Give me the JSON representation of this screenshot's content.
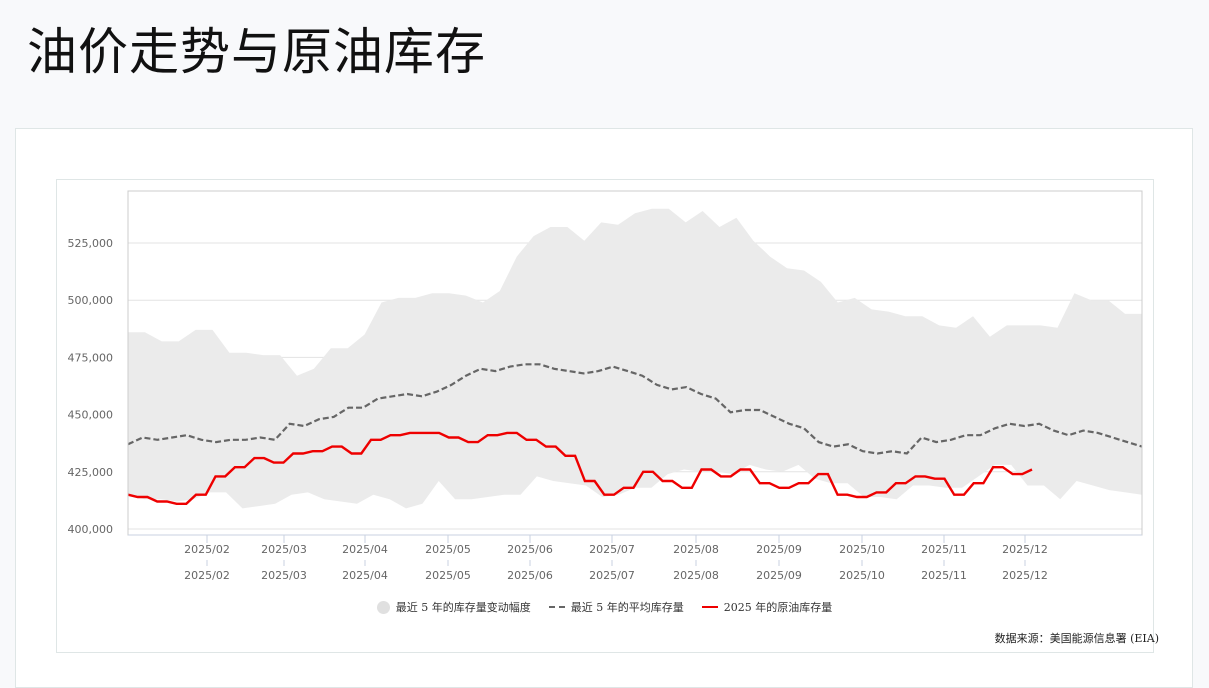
{
  "page": {
    "title": "油价走势与原油库存"
  },
  "chart": {
    "source_label": "数据来源：美国能源信息署 (EIA)",
    "legend": [
      {
        "key": "range",
        "label": "最近 5 年的库存量变动幅度",
        "icon": "circle-swatch-icon",
        "color": "#e0e0e0"
      },
      {
        "key": "avg",
        "label": "最近 5 年的平均库存量",
        "icon": "dashed-line-icon",
        "color": "#666666"
      },
      {
        "key": "current",
        "label": "2025 年的原油库存量",
        "icon": "solid-line-icon",
        "color": "#ee0000"
      }
    ],
    "colors": {
      "band": "#ebebeb",
      "avg": "#666666",
      "current": "#ee0000",
      "grid": "#e3e3e3",
      "axis": "#c8d2e0",
      "plot_border": "#cccccc"
    }
  },
  "chart_data": {
    "type": "area",
    "title": "油价走势与原油库存",
    "xlabel": "",
    "ylabel": "",
    "ylim": [
      397000,
      548000
    ],
    "yticks": [
      400000,
      425000,
      450000,
      475000,
      500000,
      525000
    ],
    "ytick_labels": [
      "400,000",
      "425,000",
      "450,000",
      "475,000",
      "500,000",
      "525,000"
    ],
    "x_tick_labels_row1": [
      "2025/02",
      "2025/03",
      "2025/04",
      "2025/05",
      "2025/06",
      "2025/07",
      "2025/08",
      "2025/09",
      "2025/10",
      "2025/11",
      "2025/12"
    ],
    "x_tick_labels_row2": [
      "2025/02",
      "2025/03",
      "2025/04",
      "2025/05",
      "2025/06",
      "2025/07",
      "2025/08",
      "2025/09",
      "2025/10",
      "2025/11",
      "2025/12"
    ],
    "x_tick_week_index": [
      4.1,
      8.0,
      12.2,
      16.5,
      20.7,
      24.9,
      29.2,
      33.5,
      37.7,
      41.9,
      46.1
    ],
    "grid": true,
    "legend_position": "bottom",
    "x_unit": "week of 2025 (0-52)",
    "series": [
      {
        "name": "最近 5 年的库存量变动幅度 (max)",
        "type": "area_upper",
        "values": [
          486000,
          486000,
          482000,
          482000,
          487000,
          487000,
          477000,
          477000,
          476000,
          476000,
          467000,
          470000,
          479000,
          479000,
          485000,
          499000,
          501000,
          501000,
          503000,
          503000,
          502000,
          499000,
          504000,
          519000,
          528000,
          532000,
          532000,
          526000,
          534000,
          533000,
          538000,
          540000,
          540000,
          534000,
          539000,
          532000,
          536000,
          526000,
          519000,
          514000,
          513000,
          508000,
          499000,
          501000,
          496000,
          495000,
          493000,
          493000,
          489000,
          488000,
          493000,
          484000,
          489000,
          489000,
          489000,
          488000,
          503000,
          500000,
          500000,
          494000,
          494000
        ]
      },
      {
        "name": "最近 5 年的库存量变动幅度 (min)",
        "type": "area_lower",
        "values": [
          415000,
          413000,
          413000,
          412000,
          413000,
          416000,
          416000,
          409000,
          410000,
          411000,
          415000,
          416000,
          413000,
          412000,
          411000,
          415000,
          413000,
          409000,
          411000,
          421000,
          413000,
          413000,
          414000,
          415000,
          415000,
          423000,
          421000,
          420000,
          419000,
          414000,
          415000,
          418000,
          418000,
          424000,
          426000,
          425000,
          425000,
          424000,
          428000,
          426000,
          425000,
          428000,
          422000,
          420000,
          420000,
          414000,
          414000,
          413000,
          419000,
          419000,
          418000,
          418000,
          423000,
          428000,
          428000,
          419000,
          419000,
          413000,
          421000,
          419000,
          417000,
          416000,
          415000
        ]
      },
      {
        "name": "最近 5 年的平均库存量",
        "type": "line_dashed",
        "values": [
          437000,
          440000,
          439000,
          440000,
          441000,
          439000,
          438000,
          439000,
          439000,
          440000,
          439000,
          446000,
          445000,
          448000,
          449000,
          453000,
          453000,
          457000,
          458000,
          459000,
          458000,
          460000,
          463000,
          467000,
          470000,
          469000,
          471000,
          472000,
          472000,
          470000,
          469000,
          468000,
          469000,
          471000,
          469000,
          467000,
          463000,
          461000,
          462000,
          459000,
          457000,
          451000,
          452000,
          452000,
          449000,
          446000,
          444000,
          438000,
          436000,
          437000,
          434000,
          433000,
          434000,
          433000,
          440000,
          438000,
          439000,
          441000,
          441000,
          444000,
          446000,
          445000,
          446000,
          443000,
          441000,
          443000,
          442000,
          440000,
          438000,
          436000
        ]
      },
      {
        "name": "2025 年的原油库存量",
        "type": "line_solid",
        "values": [
          415000,
          414000,
          414000,
          412000,
          412000,
          411000,
          411000,
          415000,
          415000,
          423000,
          423000,
          427000,
          427000,
          431000,
          431000,
          429000,
          429000,
          433000,
          433000,
          434000,
          434000,
          436000,
          436000,
          433000,
          433000,
          439000,
          439000,
          441000,
          441000,
          442000,
          442000,
          442000,
          442000,
          440000,
          440000,
          438000,
          438000,
          441000,
          441000,
          442000,
          442000,
          439000,
          439000,
          436000,
          436000,
          432000,
          432000,
          421000,
          421000,
          415000,
          415000,
          418000,
          418000,
          425000,
          425000,
          421000,
          421000,
          418000,
          418000,
          426000,
          426000,
          423000,
          423000,
          426000,
          426000,
          420000,
          420000,
          418000,
          418000,
          420000,
          420000,
          424000,
          424000,
          415000,
          415000,
          414000,
          414000,
          416000,
          416000,
          420000,
          420000,
          423000,
          423000,
          422000,
          422000,
          415000,
          415000,
          420000,
          420000,
          427000,
          427000,
          424000,
          424000,
          426000
        ]
      }
    ]
  }
}
